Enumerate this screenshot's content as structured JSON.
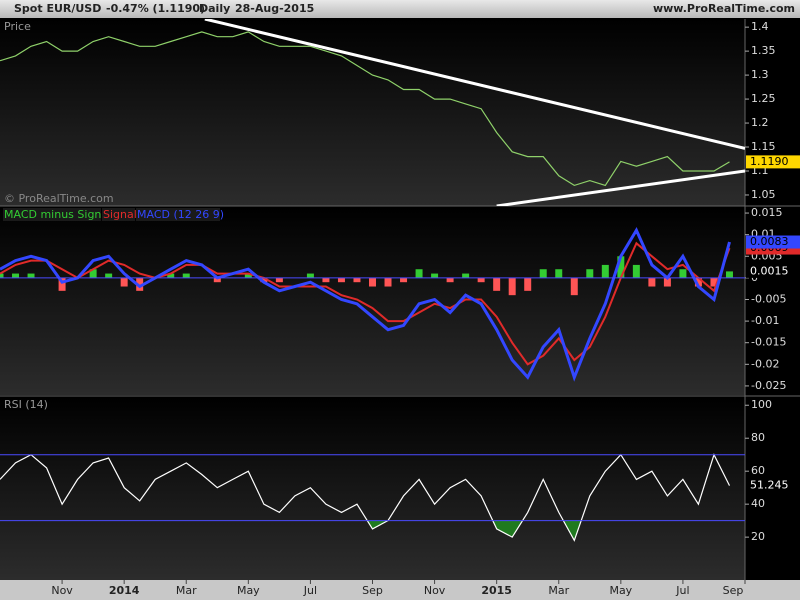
{
  "header": {
    "symbol": "Spot EUR/USD",
    "change": "-0.47% (1.1190)",
    "period": "Daily",
    "date": "28-Aug-2015",
    "site": "www.ProRealTime.com",
    "watermark": "© ProRealTime.com"
  },
  "chart_data": [
    {
      "type": "line",
      "title": "Price",
      "series": [
        {
          "color": "#8fd16a",
          "values": [
            1.33,
            1.34,
            1.36,
            1.37,
            1.35,
            1.35,
            1.37,
            1.38,
            1.37,
            1.36,
            1.36,
            1.37,
            1.38,
            1.39,
            1.38,
            1.38,
            1.39,
            1.37,
            1.36,
            1.36,
            1.36,
            1.35,
            1.34,
            1.32,
            1.3,
            1.29,
            1.27,
            1.27,
            1.25,
            1.25,
            1.24,
            1.23,
            1.18,
            1.14,
            1.13,
            1.13,
            1.09,
            1.07,
            1.08,
            1.07,
            1.12,
            1.11,
            1.12,
            1.13,
            1.1,
            1.1,
            1.1,
            1.119
          ]
        }
      ],
      "trendlines": [
        {
          "color": "#ffffff",
          "x": [
            13.2,
            48
          ],
          "y": [
            1.417,
            1.147
          ]
        },
        {
          "color": "#ffffff",
          "x": [
            32,
            48
          ],
          "y": [
            1.027,
            1.1
          ]
        }
      ],
      "tag": {
        "value": 1.119,
        "label": "1.1190",
        "color": "#ffd700"
      },
      "xlim": [
        0,
        48
      ],
      "ylim": [
        1.027,
        1.417
      ],
      "yticks": [
        1.05,
        1.1,
        1.15,
        1.2,
        1.25,
        1.3,
        1.35,
        1.4
      ]
    },
    {
      "type": "macd",
      "series": [
        {
          "name": "MACD minus Signal",
          "style": "histogram",
          "color": "#33cc33",
          "neg_color": "#ff5555",
          "values": [
            0.001,
            0.001,
            0.001,
            0.0,
            -0.003,
            0.0,
            0.002,
            0.001,
            -0.002,
            -0.003,
            0.0,
            0.001,
            0.001,
            0.0,
            -0.001,
            0.0,
            0.001,
            -0.001,
            -0.001,
            0.0,
            0.001,
            -0.001,
            -0.001,
            -0.001,
            -0.002,
            -0.002,
            -0.001,
            0.002,
            0.001,
            -0.001,
            0.001,
            -0.001,
            -0.003,
            -0.004,
            -0.003,
            0.002,
            0.002,
            -0.004,
            0.002,
            0.003,
            0.005,
            0.003,
            -0.002,
            -0.002,
            0.002,
            -0.002,
            -0.002,
            0.0015
          ]
        },
        {
          "name": "Signal",
          "style": "line",
          "color": "#e02a2a",
          "values": [
            0.001,
            0.003,
            0.004,
            0.004,
            0.002,
            0.0,
            0.002,
            0.004,
            0.003,
            0.001,
            0.0,
            0.001,
            0.003,
            0.003,
            0.001,
            0.001,
            0.001,
            0.0,
            -0.002,
            -0.002,
            -0.002,
            -0.002,
            -0.004,
            -0.005,
            -0.007,
            -0.01,
            -0.01,
            -0.008,
            -0.006,
            -0.007,
            -0.005,
            -0.005,
            -0.009,
            -0.015,
            -0.02,
            -0.018,
            -0.014,
            -0.019,
            -0.016,
            -0.009,
            0.0,
            0.008,
            0.005,
            0.002,
            0.003,
            0.0,
            -0.003,
            0.0069
          ]
        },
        {
          "name": "MACD (12 26 9)",
          "style": "line",
          "color": "#3347ff",
          "values": [
            0.002,
            0.004,
            0.005,
            0.004,
            -0.001,
            0.0,
            0.004,
            0.005,
            0.001,
            -0.002,
            0.0,
            0.002,
            0.004,
            0.003,
            0.0,
            0.001,
            0.002,
            -0.001,
            -0.003,
            -0.002,
            -0.001,
            -0.003,
            -0.005,
            -0.006,
            -0.009,
            -0.012,
            -0.011,
            -0.006,
            -0.005,
            -0.008,
            -0.004,
            -0.006,
            -0.012,
            -0.019,
            -0.023,
            -0.016,
            -0.012,
            -0.023,
            -0.014,
            -0.006,
            0.005,
            0.011,
            0.003,
            0.0,
            0.005,
            -0.002,
            -0.005,
            0.0083
          ]
        }
      ],
      "xlim": [
        0,
        48
      ],
      "ylim": [
        -0.0271,
        0.0164
      ],
      "yticks": [
        0.015,
        0.01,
        0.005,
        0,
        -0.005,
        -0.01,
        -0.015,
        -0.02,
        -0.025
      ]
    },
    {
      "type": "line",
      "title": "RSI (14)",
      "series": [
        {
          "color": "#ffffff",
          "values": [
            55,
            65,
            70,
            62,
            40,
            55,
            65,
            68,
            50,
            42,
            55,
            60,
            65,
            58,
            50,
            55,
            60,
            40,
            35,
            45,
            50,
            40,
            35,
            40,
            25,
            30,
            45,
            55,
            40,
            50,
            55,
            45,
            25,
            20,
            35,
            55,
            35,
            18,
            45,
            60,
            70,
            55,
            60,
            45,
            55,
            40,
            70,
            51.245
          ]
        }
      ],
      "bands": [
        30,
        70
      ],
      "band_color": "#4a4aff",
      "fill_color": "#1f7a1f",
      "xlim": [
        0,
        48
      ],
      "ylim": [
        -6,
        105
      ],
      "yticks": [
        20,
        40,
        60,
        80,
        100
      ],
      "xticks": [
        {
          "value": 4,
          "label": "Nov"
        },
        {
          "value": 8,
          "label": "2014"
        },
        {
          "value": 12,
          "label": "Mar"
        },
        {
          "value": 16,
          "label": "May"
        },
        {
          "value": 20,
          "label": "Jul"
        },
        {
          "value": 24,
          "label": "Sep"
        },
        {
          "value": 28,
          "label": "Nov"
        },
        {
          "value": 32,
          "label": "2015"
        },
        {
          "value": 36,
          "label": "Mar"
        },
        {
          "value": 40,
          "label": "May"
        },
        {
          "value": 44,
          "label": "Jul"
        },
        {
          "value": 48,
          "label": "Sep"
        }
      ]
    }
  ]
}
